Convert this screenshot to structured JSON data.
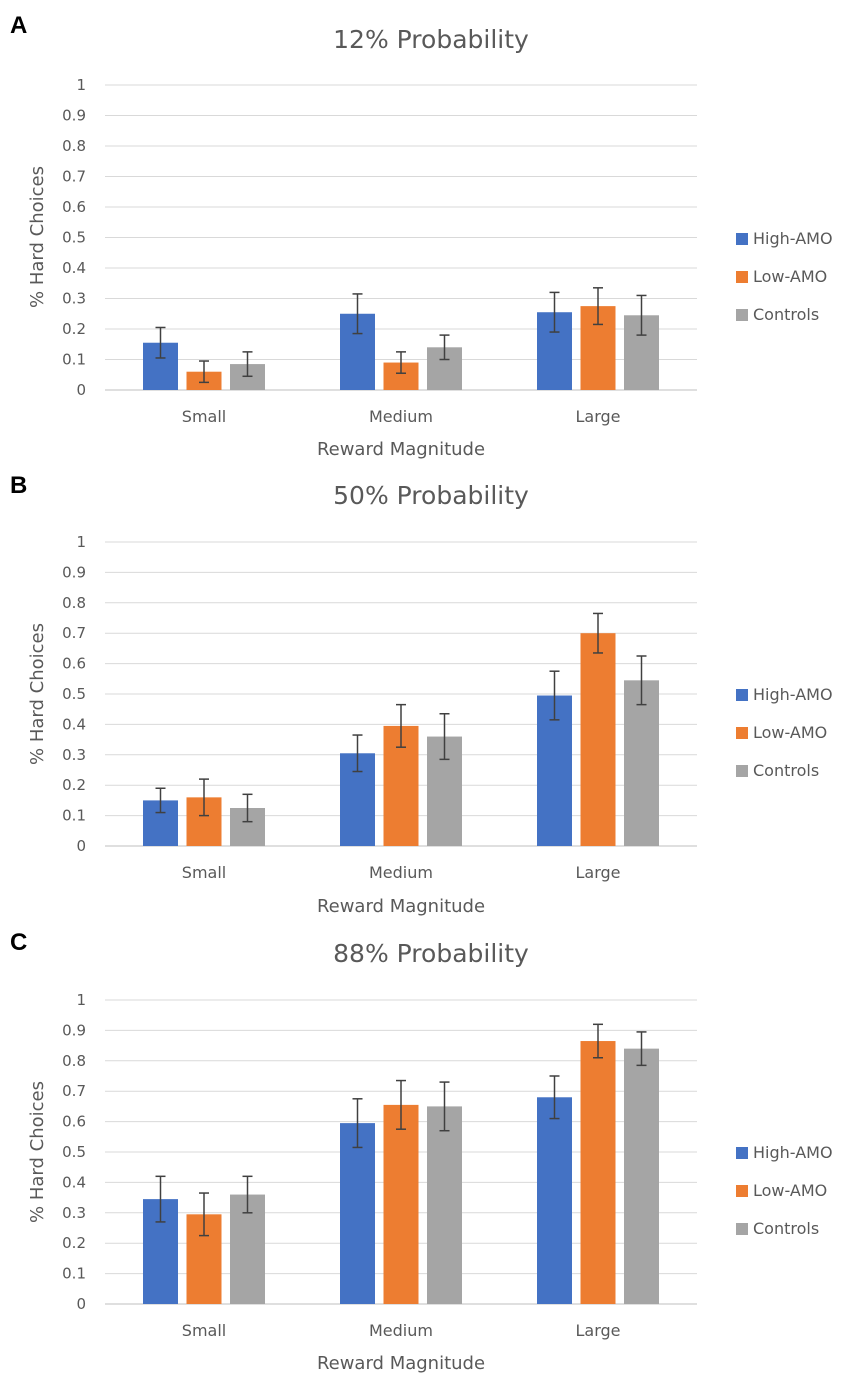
{
  "colors": {
    "series": [
      "#4472C4",
      "#ED7D31",
      "#A5A5A5"
    ],
    "grid": "#d9d9d9",
    "text": "#595959"
  },
  "chart_data": [
    {
      "type": "bar",
      "panel": "A",
      "title": "12% Probability",
      "xlabel": "Reward Magnitude",
      "ylabel": "% Hard Choices",
      "ylim": [
        0,
        1
      ],
      "yticks": [
        "0",
        "0.1",
        "0.2",
        "0.3",
        "0.4",
        "0.5",
        "0.6",
        "0.7",
        "0.8",
        "0.9",
        "1"
      ],
      "categories": [
        "Small",
        "Medium",
        "Large"
      ],
      "legend_position": "right",
      "series": [
        {
          "name": "High-AMO",
          "values": [
            0.155,
            0.25,
            0.255
          ],
          "errors": [
            0.05,
            0.065,
            0.065
          ]
        },
        {
          "name": "Low-AMO",
          "values": [
            0.06,
            0.09,
            0.275
          ],
          "errors": [
            0.035,
            0.035,
            0.06
          ]
        },
        {
          "name": "Controls",
          "values": [
            0.085,
            0.14,
            0.245
          ],
          "errors": [
            0.04,
            0.04,
            0.065
          ]
        }
      ]
    },
    {
      "type": "bar",
      "panel": "B",
      "title": "50% Probability",
      "xlabel": "Reward Magnitude",
      "ylabel": "% Hard Choices",
      "ylim": [
        0,
        1
      ],
      "yticks": [
        "0",
        "0.1",
        "0.2",
        "0.3",
        "0.4",
        "0.5",
        "0.6",
        "0.7",
        "0.8",
        "0.9",
        "1"
      ],
      "categories": [
        "Small",
        "Medium",
        "Large"
      ],
      "legend_position": "right",
      "series": [
        {
          "name": "High-AMO",
          "values": [
            0.15,
            0.305,
            0.495
          ],
          "errors": [
            0.04,
            0.06,
            0.08
          ]
        },
        {
          "name": "Low-AMO",
          "values": [
            0.16,
            0.395,
            0.7
          ],
          "errors": [
            0.06,
            0.07,
            0.065
          ]
        },
        {
          "name": "Controls",
          "values": [
            0.125,
            0.36,
            0.545
          ],
          "errors": [
            0.045,
            0.075,
            0.08
          ]
        }
      ]
    },
    {
      "type": "bar",
      "panel": "C",
      "title": "88% Probability",
      "xlabel": "Reward Magnitude",
      "ylabel": "% Hard Choices",
      "ylim": [
        0,
        1
      ],
      "yticks": [
        "0",
        "0.1",
        "0.2",
        "0.3",
        "0.4",
        "0.5",
        "0.6",
        "0.7",
        "0.8",
        "0.9",
        "1"
      ],
      "categories": [
        "Small",
        "Medium",
        "Large"
      ],
      "legend_position": "right",
      "series": [
        {
          "name": "High-AMO",
          "values": [
            0.345,
            0.595,
            0.68
          ],
          "errors": [
            0.075,
            0.08,
            0.07
          ]
        },
        {
          "name": "Low-AMO",
          "values": [
            0.295,
            0.655,
            0.865
          ],
          "errors": [
            0.07,
            0.08,
            0.055
          ]
        },
        {
          "name": "Controls",
          "values": [
            0.36,
            0.65,
            0.84
          ],
          "errors": [
            0.06,
            0.08,
            0.055
          ]
        }
      ]
    }
  ]
}
